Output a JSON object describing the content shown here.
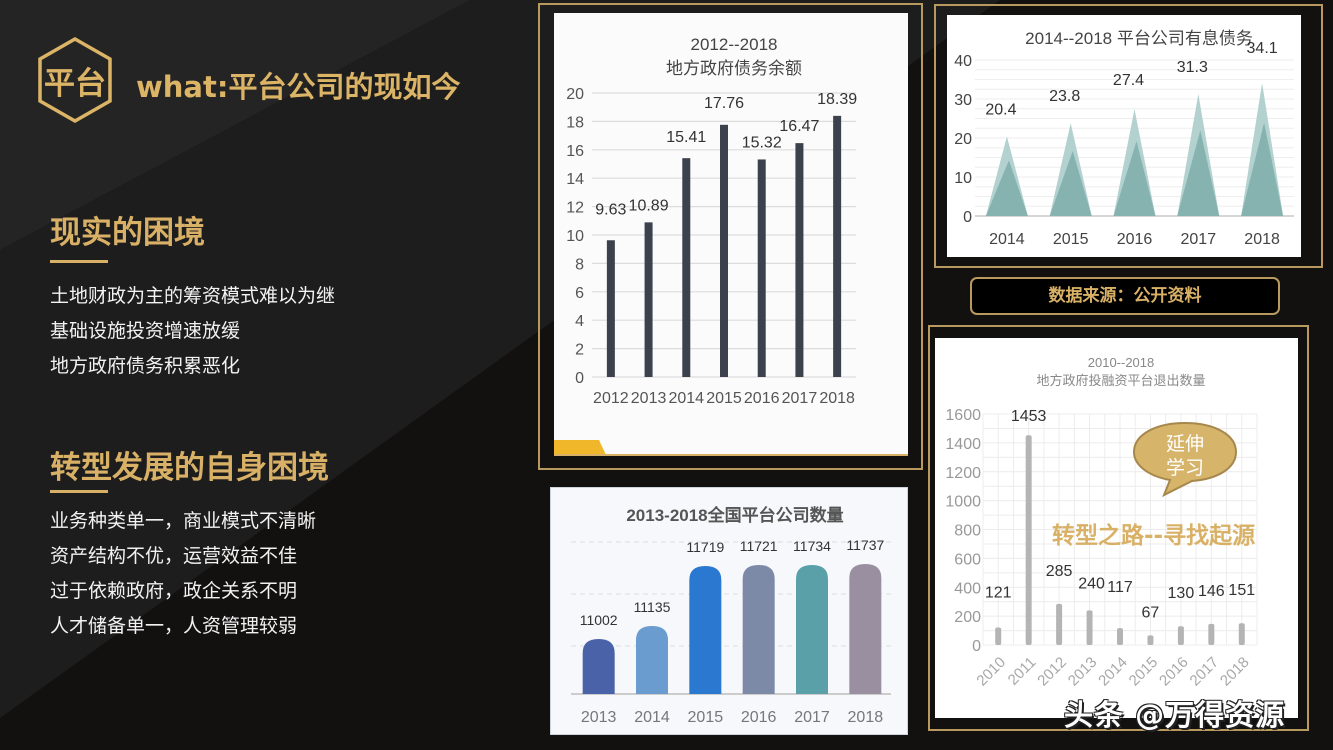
{
  "header": {
    "badge_text": "平台",
    "title": "what:平台公司的现如今"
  },
  "sections": [
    {
      "title": "现实的困境",
      "items": [
        "土地财政为主的筹资模式难以为继",
        "基础设施投资增速放缓",
        "地方政府债务积累恶化"
      ]
    },
    {
      "title": "转型发展的自身困境",
      "items": [
        "业务种类单一，商业模式不清晰",
        "资产结构不优，运营效益不佳",
        "过于依赖政府，政企关系不明",
        "人才储备单一，人资管理较弱"
      ]
    }
  ],
  "source_label": "数据来源：公开资料",
  "callout": {
    "line1": "延伸",
    "line2": "学习"
  },
  "overlay_text": "转型之路--寻找起源",
  "watermark": "头条 @万得资源",
  "colors": {
    "gold": "#d9b166",
    "background": "#131010",
    "bar_dark": "#3b424e",
    "teal": "#86b3b0",
    "grey_bar": "#b4b4b4"
  },
  "chart_data": [
    {
      "type": "bar",
      "title": "2012--2018\n地方政府债务余额",
      "title_line1": "2012--2018",
      "title_line2": "地方政府债务余额",
      "categories": [
        "2012",
        "2013",
        "2014",
        "2015",
        "2016",
        "2017",
        "2018"
      ],
      "values": [
        9.63,
        10.89,
        15.41,
        17.76,
        15.32,
        16.47,
        18.39
      ],
      "labels": [
        "9.63",
        "10.89",
        "15.41",
        "17.76",
        "15.32",
        "16.47",
        "18.39"
      ],
      "yticks": [
        "0",
        "2",
        "4",
        "6",
        "8",
        "10",
        "12",
        "14",
        "16",
        "18",
        "20"
      ],
      "ylim": [
        0,
        20
      ],
      "xlabel": "",
      "ylabel": "",
      "grid": true
    },
    {
      "type": "bar",
      "title": "2014--2018  平台公司有息债务",
      "categories": [
        "2014",
        "2015",
        "2016",
        "2017",
        "2018"
      ],
      "values": [
        20.4,
        23.8,
        27.4,
        31.3,
        34.1
      ],
      "labels": [
        "20.4",
        "23.8",
        "27.4",
        "31.3",
        "34.1"
      ],
      "yticks": [
        "0",
        "10",
        "20",
        "30",
        "40"
      ],
      "ylim": [
        0,
        40
      ],
      "xlabel": "",
      "ylabel": "",
      "grid": true,
      "shape": "triangle"
    },
    {
      "type": "bar",
      "title": "2013-2018全国平台公司数量",
      "categories": [
        "2013",
        "2014",
        "2015",
        "2016",
        "2017",
        "2018"
      ],
      "values": [
        11002,
        11135,
        11719,
        11721,
        11734,
        11737
      ],
      "labels": [
        "11002",
        "11135",
        "11719",
        "11721",
        "11734",
        "11737"
      ],
      "bar_colors": [
        "#4a62a8",
        "#6a9ccf",
        "#2a78d0",
        "#7c8aa8",
        "#5aa0a8",
        "#9a8fa0"
      ],
      "xlabel": "",
      "ylabel": "",
      "grid": true
    },
    {
      "type": "bar",
      "title": "2010--2018\n地方政府投融资平台退出数量",
      "title_line1": "2010--2018",
      "title_line2": "地方政府投融资平台退出数量",
      "categories": [
        "2010",
        "2011",
        "2012",
        "2013",
        "2014",
        "2015",
        "2016",
        "2017",
        "2018"
      ],
      "values": [
        121,
        1453,
        285,
        240,
        117,
        67,
        130,
        146,
        151
      ],
      "labels": [
        "121",
        "1453",
        "285",
        "240",
        "117",
        "67",
        "130",
        "146",
        "151"
      ],
      "yticks": [
        "0",
        "200",
        "400",
        "600",
        "800",
        "1000",
        "1200",
        "1400",
        "1600"
      ],
      "ylim": [
        0,
        1600
      ],
      "xlabel": "",
      "ylabel": "",
      "grid": true
    }
  ]
}
